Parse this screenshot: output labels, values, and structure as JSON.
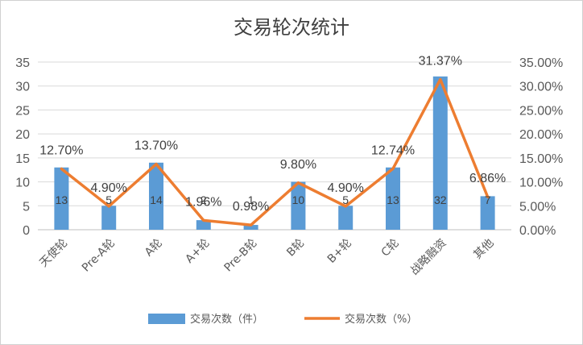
{
  "chart_data": {
    "type": "bar",
    "title": "交易轮次统计",
    "categories": [
      "天使轮",
      "Pre-A轮",
      "A轮",
      "A+轮",
      "Pre-B轮",
      "B轮",
      "B+轮",
      "C轮",
      "战略融资",
      "其他"
    ],
    "series": [
      {
        "name": "交易次数（件）",
        "type": "bar",
        "axis": "left",
        "color": "#5b9bd5",
        "values": [
          13,
          5,
          14,
          2,
          1,
          10,
          5,
          13,
          32,
          7
        ],
        "labels": [
          "13",
          "5",
          "14",
          "2",
          "1",
          "10",
          "5",
          "13",
          "32",
          "7"
        ]
      },
      {
        "name": "交易次数（%）",
        "type": "line",
        "axis": "right",
        "color": "#ed7d31",
        "values": [
          12.7,
          4.9,
          13.7,
          1.96,
          0.98,
          9.8,
          4.9,
          12.74,
          31.37,
          6.86
        ],
        "labels": [
          "12.70%",
          "4.90%",
          "13.70%",
          "1.96%",
          "0.98%",
          "9.80%",
          "4.90%",
          "12.74%",
          "31.37%",
          "6.86%"
        ]
      }
    ],
    "left_axis": {
      "ylim": [
        0,
        35
      ],
      "ticks": [
        "0",
        "5",
        "10",
        "15",
        "20",
        "25",
        "30",
        "35"
      ]
    },
    "right_axis": {
      "ylim": [
        0,
        35
      ],
      "ticks": [
        "0.00%",
        "5.00%",
        "10.00%",
        "15.00%",
        "20.00%",
        "25.00%",
        "30.00%",
        "35.00%"
      ]
    },
    "grid": true,
    "legend_position": "bottom"
  }
}
